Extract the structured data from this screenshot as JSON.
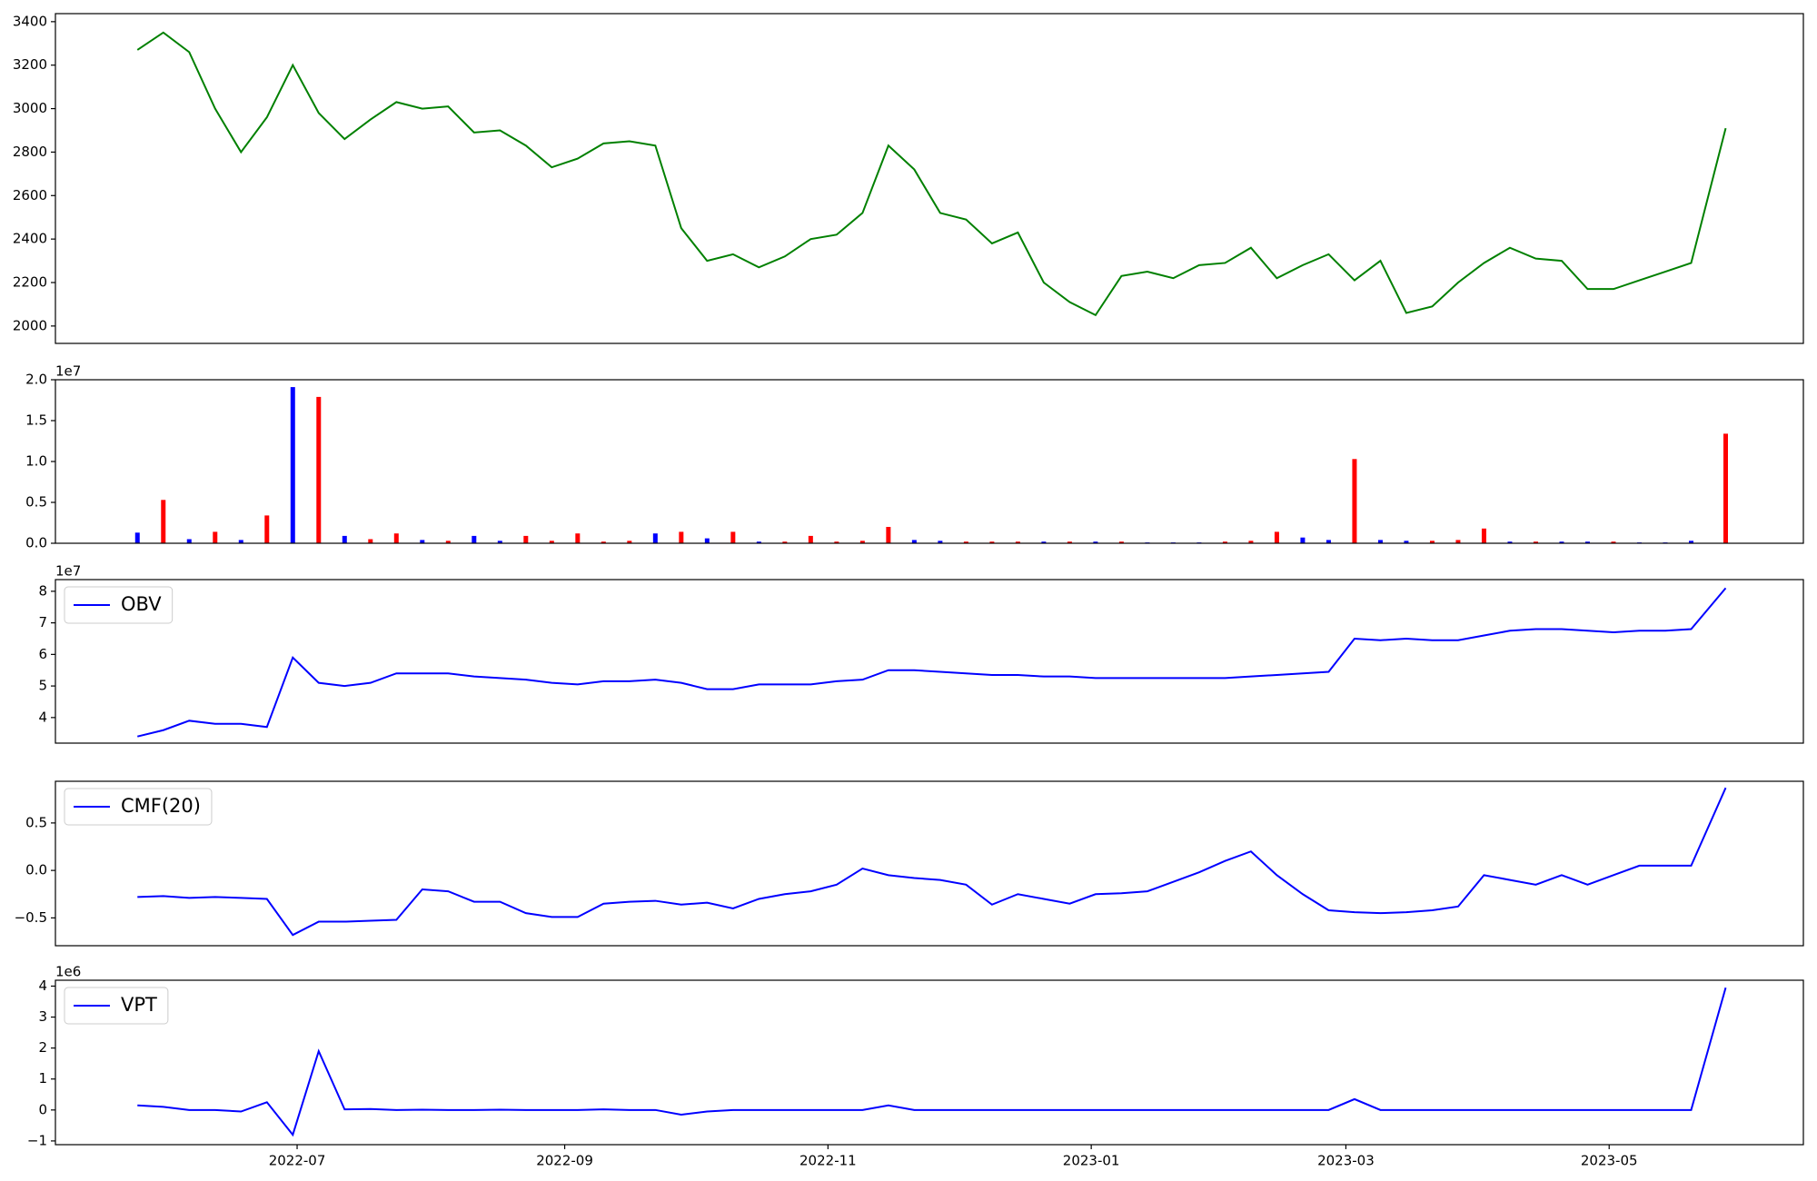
{
  "chart_data": [
    {
      "type": "line",
      "x": [
        19137,
        19143,
        19149,
        19155,
        19161,
        19167,
        19173,
        19179,
        19185,
        19191,
        19197,
        19203,
        19209,
        19215,
        19221,
        19227,
        19233,
        19239,
        19245,
        19251,
        19257,
        19263,
        19269,
        19275,
        19281,
        19287,
        19293,
        19299,
        19305,
        19311,
        19317,
        19323,
        19329,
        19335,
        19341,
        19347,
        19353,
        19359,
        19365,
        19371,
        19377,
        19383,
        19389,
        19395,
        19401,
        19407,
        19413,
        19419,
        19425,
        19431,
        19437,
        19443,
        19449,
        19455,
        19461,
        19467,
        19473,
        19479,
        19485,
        19491,
        19497,
        19505
      ],
      "xlim": [
        19118,
        19523
      ],
      "ylim": [
        1920,
        3437
      ],
      "yticks": [
        2000,
        2200,
        2400,
        2600,
        2800,
        3000,
        3200,
        3400
      ],
      "series": [
        {
          "color": "#008000",
          "values": [
            3270,
            3350,
            3260,
            3000,
            2800,
            2960,
            3200,
            2980,
            2860,
            2950,
            3030,
            3000,
            3010,
            2890,
            2900,
            2830,
            2730,
            2770,
            2840,
            2850,
            2830,
            2450,
            2300,
            2330,
            2270,
            2320,
            2400,
            2420,
            2520,
            2830,
            2720,
            2520,
            2490,
            2380,
            2430,
            2200,
            2110,
            2050,
            2230,
            2250,
            2220,
            2280,
            2290,
            2360,
            2220,
            2280,
            2330,
            2210,
            2300,
            2060,
            2090,
            2200,
            2290,
            2360,
            2310,
            2300,
            2170,
            2170,
            2210,
            2250,
            2290,
            2910
          ]
        }
      ]
    },
    {
      "type": "bar",
      "x": [
        19137,
        19143,
        19149,
        19155,
        19161,
        19167,
        19173,
        19179,
        19185,
        19191,
        19197,
        19203,
        19209,
        19215,
        19221,
        19227,
        19233,
        19239,
        19245,
        19251,
        19257,
        19263,
        19269,
        19275,
        19281,
        19287,
        19293,
        19299,
        19305,
        19311,
        19317,
        19323,
        19329,
        19335,
        19341,
        19347,
        19353,
        19359,
        19365,
        19371,
        19377,
        19383,
        19389,
        19395,
        19401,
        19407,
        19413,
        19419,
        19425,
        19431,
        19437,
        19443,
        19449,
        19455,
        19461,
        19467,
        19473,
        19479,
        19485,
        19491,
        19497,
        19505
      ],
      "xlim": [
        19118,
        19523
      ],
      "ylim": [
        0,
        20000000
      ],
      "y_offset_label": "1e7",
      "yticks": [
        {
          "value": 0,
          "label": "0.0"
        },
        {
          "value": 5000000,
          "label": "0.5"
        },
        {
          "value": 10000000,
          "label": "1.0"
        },
        {
          "value": 15000000,
          "label": "1.5"
        },
        {
          "value": 20000000,
          "label": "2.0"
        }
      ],
      "series": [
        {
          "values": [
            1300000,
            5300000,
            500000,
            1400000,
            400000,
            3400000,
            19100000,
            17900000,
            900000,
            500000,
            1200000,
            400000,
            300000,
            900000,
            300000,
            900000,
            300000,
            1200000,
            200000,
            300000,
            1200000,
            1400000,
            600000,
            1400000,
            200000,
            200000,
            900000,
            200000,
            300000,
            2000000,
            400000,
            300000,
            200000,
            200000,
            200000,
            200000,
            200000,
            200000,
            200000,
            100000,
            100000,
            100000,
            200000,
            300000,
            1400000,
            700000,
            400000,
            10300000,
            400000,
            300000,
            300000,
            400000,
            1800000,
            200000,
            200000,
            200000,
            200000,
            200000,
            100000,
            100000,
            300000,
            13400000
          ],
          "colors": [
            "blue",
            "red",
            "blue",
            "red",
            "blue",
            "red",
            "blue",
            "red",
            "blue",
            "red",
            "red",
            "blue",
            "red",
            "blue",
            "blue",
            "red",
            "red",
            "red",
            "red",
            "red",
            "blue",
            "red",
            "blue",
            "red",
            "blue",
            "red",
            "red",
            "red",
            "red",
            "red",
            "blue",
            "blue",
            "red",
            "red",
            "red",
            "blue",
            "red",
            "blue",
            "red",
            "blue",
            "blue",
            "blue",
            "red",
            "red",
            "red",
            "blue",
            "blue",
            "red",
            "blue",
            "blue",
            "red",
            "red",
            "red",
            "blue",
            "red",
            "blue",
            "blue",
            "red",
            "blue",
            "blue",
            "blue",
            "red"
          ]
        }
      ]
    },
    {
      "type": "line",
      "x": [
        19137,
        19143,
        19149,
        19155,
        19161,
        19167,
        19173,
        19179,
        19185,
        19191,
        19197,
        19203,
        19209,
        19215,
        19221,
        19227,
        19233,
        19239,
        19245,
        19251,
        19257,
        19263,
        19269,
        19275,
        19281,
        19287,
        19293,
        19299,
        19305,
        19311,
        19317,
        19323,
        19329,
        19335,
        19341,
        19347,
        19353,
        19359,
        19365,
        19371,
        19377,
        19383,
        19389,
        19395,
        19401,
        19407,
        19413,
        19419,
        19425,
        19431,
        19437,
        19443,
        19449,
        19455,
        19461,
        19467,
        19473,
        19479,
        19485,
        19491,
        19497,
        19505
      ],
      "xlim": [
        19118,
        19523
      ],
      "ylim": [
        31900000,
        83700000
      ],
      "y_offset_label": "1e7",
      "legend": "upper left",
      "yticks": [
        {
          "value": 40000000,
          "label": "4"
        },
        {
          "value": 50000000,
          "label": "5"
        },
        {
          "value": 60000000,
          "label": "6"
        },
        {
          "value": 70000000,
          "label": "7"
        },
        {
          "value": 80000000,
          "label": "8"
        }
      ],
      "series": [
        {
          "name": "OBV",
          "color": "#0000ff",
          "values": [
            34000000,
            36000000,
            39000000,
            38000000,
            38000000,
            37000000,
            59000000,
            51000000,
            50000000,
            51000000,
            54000000,
            54000000,
            54000000,
            53000000,
            52500000,
            52000000,
            51000000,
            50500000,
            51500000,
            51500000,
            52000000,
            51000000,
            49000000,
            49000000,
            50500000,
            50500000,
            50500000,
            51500000,
            52000000,
            55000000,
            55000000,
            54500000,
            54000000,
            53500000,
            53500000,
            53000000,
            53000000,
            52500000,
            52500000,
            52500000,
            52500000,
            52500000,
            52500000,
            53000000,
            53500000,
            54000000,
            54500000,
            65000000,
            64500000,
            65000000,
            64500000,
            64500000,
            66000000,
            67500000,
            68000000,
            68000000,
            67500000,
            67000000,
            67500000,
            67500000,
            68000000,
            81000000
          ]
        }
      ]
    },
    {
      "type": "line",
      "x": [
        19137,
        19143,
        19149,
        19155,
        19161,
        19167,
        19173,
        19179,
        19185,
        19191,
        19197,
        19203,
        19209,
        19215,
        19221,
        19227,
        19233,
        19239,
        19245,
        19251,
        19257,
        19263,
        19269,
        19275,
        19281,
        19287,
        19293,
        19299,
        19305,
        19311,
        19317,
        19323,
        19329,
        19335,
        19341,
        19347,
        19353,
        19359,
        19365,
        19371,
        19377,
        19383,
        19389,
        19395,
        19401,
        19407,
        19413,
        19419,
        19425,
        19431,
        19437,
        19443,
        19449,
        19455,
        19461,
        19467,
        19473,
        19479,
        19485,
        19491,
        19497,
        19505
      ],
      "xlim": [
        19118,
        19523
      ],
      "ylim": [
        -0.793,
        0.939
      ],
      "legend": "upper left",
      "yticks": [
        {
          "value": -0.5,
          "label": "−0.5"
        },
        {
          "value": 0,
          "label": "0.0"
        },
        0.5
      ],
      "series": [
        {
          "name": "CMF(20)",
          "color": "#0000ff",
          "values": [
            -0.28,
            -0.27,
            -0.29,
            -0.28,
            -0.29,
            -0.3,
            -0.68,
            -0.54,
            -0.54,
            -0.53,
            -0.52,
            -0.2,
            -0.22,
            -0.33,
            -0.33,
            -0.45,
            -0.49,
            -0.49,
            -0.35,
            -0.33,
            -0.32,
            -0.36,
            -0.34,
            -0.4,
            -0.3,
            -0.25,
            -0.22,
            -0.15,
            0.02,
            -0.05,
            -0.08,
            -0.1,
            -0.15,
            -0.36,
            -0.25,
            -0.3,
            -0.35,
            -0.25,
            -0.24,
            -0.22,
            -0.12,
            -0.02,
            0.1,
            0.2,
            -0.05,
            -0.25,
            -0.42,
            -0.44,
            -0.45,
            -0.44,
            -0.42,
            -0.38,
            -0.05,
            -0.1,
            -0.15,
            -0.05,
            -0.15,
            -0.05,
            0.05,
            0.05,
            0.05,
            0.87
          ]
        }
      ]
    },
    {
      "type": "line",
      "x": [
        19137,
        19143,
        19149,
        19155,
        19161,
        19167,
        19173,
        19179,
        19185,
        19191,
        19197,
        19203,
        19209,
        19215,
        19221,
        19227,
        19233,
        19239,
        19245,
        19251,
        19257,
        19263,
        19269,
        19275,
        19281,
        19287,
        19293,
        19299,
        19305,
        19311,
        19317,
        19323,
        19329,
        19335,
        19341,
        19347,
        19353,
        19359,
        19365,
        19371,
        19377,
        19383,
        19389,
        19395,
        19401,
        19407,
        19413,
        19419,
        19425,
        19431,
        19437,
        19443,
        19449,
        19455,
        19461,
        19467,
        19473,
        19479,
        19485,
        19491,
        19497,
        19505
      ],
      "xlim": [
        19118,
        19523
      ],
      "ylim": [
        -1120000,
        4190000
      ],
      "y_offset_label": "1e6",
      "legend": "upper left",
      "yticks": [
        {
          "value": -1000000,
          "label": "−1"
        },
        {
          "value": 0,
          "label": "0"
        },
        {
          "value": 1000000,
          "label": "1"
        },
        {
          "value": 2000000,
          "label": "2"
        },
        {
          "value": 3000000,
          "label": "3"
        },
        {
          "value": 4000000,
          "label": "4"
        }
      ],
      "xticks": [
        {
          "value": 19174,
          "label": "2022-07"
        },
        {
          "value": 19236,
          "label": "2022-09"
        },
        {
          "value": 19297,
          "label": "2022-11"
        },
        {
          "value": 19358,
          "label": "2023-01"
        },
        {
          "value": 19417,
          "label": "2023-03"
        },
        {
          "value": 19478,
          "label": "2023-05"
        }
      ],
      "series": [
        {
          "name": "VPT",
          "color": "#0000ff",
          "values": [
            150000,
            100000,
            0,
            0,
            -50000,
            250000,
            -800000,
            1900000,
            20000,
            30000,
            0,
            10000,
            0,
            0,
            10000,
            0,
            0,
            0,
            20000,
            0,
            0,
            -150000,
            -50000,
            0,
            0,
            0,
            0,
            0,
            0,
            150000,
            0,
            0,
            0,
            0,
            0,
            0,
            0,
            0,
            0,
            0,
            0,
            0,
            0,
            0,
            0,
            0,
            0,
            350000,
            0,
            0,
            0,
            0,
            0,
            0,
            0,
            0,
            0,
            0,
            0,
            0,
            0,
            3950000
          ]
        }
      ]
    }
  ]
}
